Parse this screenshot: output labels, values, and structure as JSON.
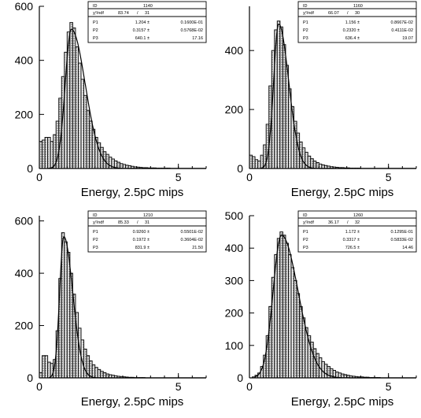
{
  "chart_data": [
    {
      "type": "histogram",
      "xlabel": "Energy, 2.5pC mips",
      "xlim": [
        0,
        6
      ],
      "ylim": [
        0,
        600
      ],
      "xticks": [
        0,
        5
      ],
      "yticks": [
        0,
        200,
        400,
        600
      ],
      "stats": {
        "id_label": "ID",
        "id": "1140",
        "chi2_label": "χ²/ndf",
        "chi2": "83.74",
        "ndf": "31",
        "params": [
          {
            "name": "P1",
            "value": "1.204 ±",
            "error": "0.1600E-01"
          },
          {
            "name": "P2",
            "value": "0.3157 ±",
            "error": "0.5768E-02"
          },
          {
            "name": "P3",
            "value": "640.1 ±",
            "error": "17.16"
          }
        ]
      },
      "bins": [
        {
          "x": 0.0,
          "y": 100
        },
        {
          "x": 0.1,
          "y": 105
        },
        {
          "x": 0.2,
          "y": 115
        },
        {
          "x": 0.3,
          "y": 115
        },
        {
          "x": 0.4,
          "y": 100
        },
        {
          "x": 0.5,
          "y": 125
        },
        {
          "x": 0.6,
          "y": 175
        },
        {
          "x": 0.7,
          "y": 260
        },
        {
          "x": 0.8,
          "y": 340
        },
        {
          "x": 0.9,
          "y": 430
        },
        {
          "x": 1.0,
          "y": 505
        },
        {
          "x": 1.1,
          "y": 540
        },
        {
          "x": 1.2,
          "y": 520
        },
        {
          "x": 1.3,
          "y": 450
        },
        {
          "x": 1.4,
          "y": 390
        },
        {
          "x": 1.5,
          "y": 330
        },
        {
          "x": 1.6,
          "y": 270
        },
        {
          "x": 1.7,
          "y": 215
        },
        {
          "x": 1.8,
          "y": 175
        },
        {
          "x": 1.9,
          "y": 145
        },
        {
          "x": 2.0,
          "y": 115
        },
        {
          "x": 2.1,
          "y": 95
        },
        {
          "x": 2.2,
          "y": 78
        },
        {
          "x": 2.3,
          "y": 62
        },
        {
          "x": 2.4,
          "y": 52
        },
        {
          "x": 2.5,
          "y": 42
        },
        {
          "x": 2.6,
          "y": 35
        },
        {
          "x": 2.7,
          "y": 28
        },
        {
          "x": 2.8,
          "y": 23
        },
        {
          "x": 2.9,
          "y": 18
        },
        {
          "x": 3.0,
          "y": 15
        },
        {
          "x": 3.1,
          "y": 12
        },
        {
          "x": 3.2,
          "y": 10
        },
        {
          "x": 3.3,
          "y": 8
        },
        {
          "x": 3.4,
          "y": 6
        },
        {
          "x": 3.5,
          "y": 5
        },
        {
          "x": 3.6,
          "y": 4
        },
        {
          "x": 3.7,
          "y": 3
        },
        {
          "x": 3.8,
          "y": 3
        },
        {
          "x": 3.9,
          "y": 2
        },
        {
          "x": 4.0,
          "y": 2
        },
        {
          "x": 4.1,
          "y": 2
        },
        {
          "x": 4.2,
          "y": 1
        },
        {
          "x": 4.3,
          "y": 1
        },
        {
          "x": 4.4,
          "y": 1
        },
        {
          "x": 4.5,
          "y": 1
        },
        {
          "x": 4.6,
          "y": 1
        },
        {
          "x": 4.7,
          "y": 0
        },
        {
          "x": 4.8,
          "y": 0
        },
        {
          "x": 4.9,
          "y": 0
        }
      ],
      "fit": {
        "start": 0.3,
        "peak_x": 1.15,
        "peak_y": 515,
        "sigma_left": 0.22,
        "sigma_right": 0.5
      }
    },
    {
      "type": "histogram",
      "xlabel": "Energy, 2.5pC mips",
      "xlim": [
        0,
        6
      ],
      "ylim": [
        0,
        550
      ],
      "xticks": [
        0,
        5
      ],
      "yticks": [
        0,
        200,
        400
      ],
      "stats": {
        "id_label": "ID",
        "id": "1160",
        "chi2_label": "χ²/ndf",
        "chi2": "66.07",
        "ndf": "30",
        "params": [
          {
            "name": "P1",
            "value": "1.156 ±",
            "error": "0.8667E-02"
          },
          {
            "name": "P2",
            "value": "0.2320 ±",
            "error": "0.4111E-02"
          },
          {
            "name": "P3",
            "value": "636.4 ±",
            "error": "19.07"
          }
        ]
      },
      "bins": [
        {
          "x": 0.0,
          "y": 45
        },
        {
          "x": 0.1,
          "y": 40
        },
        {
          "x": 0.2,
          "y": 30
        },
        {
          "x": 0.3,
          "y": 25
        },
        {
          "x": 0.4,
          "y": 45
        },
        {
          "x": 0.5,
          "y": 80
        },
        {
          "x": 0.6,
          "y": 150
        },
        {
          "x": 0.7,
          "y": 280
        },
        {
          "x": 0.8,
          "y": 400
        },
        {
          "x": 0.9,
          "y": 470
        },
        {
          "x": 1.0,
          "y": 500
        },
        {
          "x": 1.1,
          "y": 480
        },
        {
          "x": 1.2,
          "y": 420
        },
        {
          "x": 1.3,
          "y": 350
        },
        {
          "x": 1.4,
          "y": 270
        },
        {
          "x": 1.5,
          "y": 210
        },
        {
          "x": 1.6,
          "y": 160
        },
        {
          "x": 1.7,
          "y": 120
        },
        {
          "x": 1.8,
          "y": 90
        },
        {
          "x": 1.9,
          "y": 70
        },
        {
          "x": 2.0,
          "y": 55
        },
        {
          "x": 2.1,
          "y": 42
        },
        {
          "x": 2.2,
          "y": 33
        },
        {
          "x": 2.3,
          "y": 25
        },
        {
          "x": 2.4,
          "y": 20
        },
        {
          "x": 2.5,
          "y": 15
        },
        {
          "x": 2.6,
          "y": 12
        },
        {
          "x": 2.7,
          "y": 10
        },
        {
          "x": 2.8,
          "y": 8
        },
        {
          "x": 2.9,
          "y": 6
        },
        {
          "x": 3.0,
          "y": 5
        },
        {
          "x": 3.1,
          "y": 4
        },
        {
          "x": 3.2,
          "y": 3
        },
        {
          "x": 3.3,
          "y": 3
        },
        {
          "x": 3.4,
          "y": 2
        },
        {
          "x": 3.5,
          "y": 2
        },
        {
          "x": 3.6,
          "y": 1
        },
        {
          "x": 3.7,
          "y": 1
        },
        {
          "x": 3.8,
          "y": 1
        },
        {
          "x": 3.9,
          "y": 1
        },
        {
          "x": 4.0,
          "y": 0
        },
        {
          "x": 4.1,
          "y": 0
        },
        {
          "x": 4.2,
          "y": 0
        },
        {
          "x": 4.3,
          "y": 0
        },
        {
          "x": 4.4,
          "y": 0
        },
        {
          "x": 4.5,
          "y": 0
        },
        {
          "x": 4.6,
          "y": 0
        },
        {
          "x": 4.7,
          "y": 0
        },
        {
          "x": 4.8,
          "y": 0
        },
        {
          "x": 4.9,
          "y": 0
        }
      ],
      "fit": {
        "start": 0.4,
        "peak_x": 1.05,
        "peak_y": 490,
        "sigma_left": 0.18,
        "sigma_right": 0.36
      }
    },
    {
      "type": "histogram",
      "xlabel": "Energy, 2.5pC mips",
      "xlim": [
        0,
        6
      ],
      "ylim": [
        0,
        620
      ],
      "xticks": [
        0,
        5
      ],
      "yticks": [
        0,
        200,
        400,
        600
      ],
      "stats": {
        "id_label": "ID",
        "id": "1210",
        "chi2_label": "χ²/ndf",
        "chi2": "85.33",
        "ndf": "31",
        "params": [
          {
            "name": "P1",
            "value": "0.9260 ±",
            "error": "0.5501E-02"
          },
          {
            "name": "P2",
            "value": "0.1972 ±",
            "error": "0.3604E-02"
          },
          {
            "name": "P3",
            "value": "831.9 ±",
            "error": "21.50"
          }
        ]
      },
      "bins": [
        {
          "x": 0.0,
          "y": 20
        },
        {
          "x": 0.1,
          "y": 85
        },
        {
          "x": 0.2,
          "y": 85
        },
        {
          "x": 0.3,
          "y": 60
        },
        {
          "x": 0.4,
          "y": 55
        },
        {
          "x": 0.5,
          "y": 70
        },
        {
          "x": 0.6,
          "y": 180
        },
        {
          "x": 0.7,
          "y": 380
        },
        {
          "x": 0.8,
          "y": 555
        },
        {
          "x": 0.9,
          "y": 520
        },
        {
          "x": 1.0,
          "y": 480
        },
        {
          "x": 1.1,
          "y": 400
        },
        {
          "x": 1.2,
          "y": 320
        },
        {
          "x": 1.3,
          "y": 250
        },
        {
          "x": 1.4,
          "y": 190
        },
        {
          "x": 1.5,
          "y": 145
        },
        {
          "x": 1.6,
          "y": 110
        },
        {
          "x": 1.7,
          "y": 85
        },
        {
          "x": 1.8,
          "y": 65
        },
        {
          "x": 1.9,
          "y": 50
        },
        {
          "x": 2.0,
          "y": 40
        },
        {
          "x": 2.1,
          "y": 32
        },
        {
          "x": 2.2,
          "y": 25
        },
        {
          "x": 2.3,
          "y": 20
        },
        {
          "x": 2.4,
          "y": 15
        },
        {
          "x": 2.5,
          "y": 12
        },
        {
          "x": 2.6,
          "y": 10
        },
        {
          "x": 2.7,
          "y": 8
        },
        {
          "x": 2.8,
          "y": 6
        },
        {
          "x": 2.9,
          "y": 5
        },
        {
          "x": 3.0,
          "y": 4
        },
        {
          "x": 3.1,
          "y": 3
        },
        {
          "x": 3.2,
          "y": 2
        },
        {
          "x": 3.3,
          "y": 2
        },
        {
          "x": 3.4,
          "y": 1
        },
        {
          "x": 3.5,
          "y": 1
        },
        {
          "x": 3.6,
          "y": 1
        },
        {
          "x": 3.7,
          "y": 1
        },
        {
          "x": 3.8,
          "y": 0
        },
        {
          "x": 3.9,
          "y": 0
        },
        {
          "x": 4.0,
          "y": 0
        },
        {
          "x": 4.1,
          "y": 0
        },
        {
          "x": 4.2,
          "y": 0
        },
        {
          "x": 4.3,
          "y": 0
        },
        {
          "x": 4.4,
          "y": 0
        },
        {
          "x": 4.5,
          "y": 0
        },
        {
          "x": 4.6,
          "y": 0
        },
        {
          "x": 4.7,
          "y": 0
        },
        {
          "x": 4.8,
          "y": 0
        },
        {
          "x": 4.9,
          "y": 0
        }
      ],
      "fit": {
        "start": 0.35,
        "peak_x": 0.88,
        "peak_y": 540,
        "sigma_left": 0.15,
        "sigma_right": 0.32
      }
    },
    {
      "type": "histogram",
      "xlabel": "Energy, 2.5pC mips",
      "xlim": [
        0,
        6
      ],
      "ylim": [
        0,
        500
      ],
      "xticks": [
        0,
        5
      ],
      "yticks": [
        0,
        100,
        200,
        300,
        400,
        500
      ],
      "stats": {
        "id_label": "ID",
        "id": "1260",
        "chi2_label": "χ²/ndf",
        "chi2": "36.17",
        "ndf": "32",
        "params": [
          {
            "name": "P1",
            "value": "1.172 ±",
            "error": "0.1295E-01"
          },
          {
            "name": "P2",
            "value": "0.3317 ±",
            "error": "0.5833E-02"
          },
          {
            "name": "P3",
            "value": "726.5 ±",
            "error": "14.46"
          }
        ]
      },
      "bins": [
        {
          "x": 0.0,
          "y": 0
        },
        {
          "x": 0.1,
          "y": 3
        },
        {
          "x": 0.2,
          "y": 8
        },
        {
          "x": 0.3,
          "y": 15
        },
        {
          "x": 0.4,
          "y": 35
        },
        {
          "x": 0.5,
          "y": 70
        },
        {
          "x": 0.6,
          "y": 130
        },
        {
          "x": 0.7,
          "y": 220
        },
        {
          "x": 0.8,
          "y": 310
        },
        {
          "x": 0.9,
          "y": 380
        },
        {
          "x": 1.0,
          "y": 430
        },
        {
          "x": 1.1,
          "y": 450
        },
        {
          "x": 1.2,
          "y": 440
        },
        {
          "x": 1.3,
          "y": 415
        },
        {
          "x": 1.4,
          "y": 380
        },
        {
          "x": 1.5,
          "y": 340
        },
        {
          "x": 1.6,
          "y": 300
        },
        {
          "x": 1.7,
          "y": 260
        },
        {
          "x": 1.8,
          "y": 220
        },
        {
          "x": 1.9,
          "y": 185
        },
        {
          "x": 2.0,
          "y": 155
        },
        {
          "x": 2.1,
          "y": 130
        },
        {
          "x": 2.2,
          "y": 110
        },
        {
          "x": 2.3,
          "y": 90
        },
        {
          "x": 2.4,
          "y": 75
        },
        {
          "x": 2.5,
          "y": 62
        },
        {
          "x": 2.6,
          "y": 50
        },
        {
          "x": 2.7,
          "y": 42
        },
        {
          "x": 2.8,
          "y": 35
        },
        {
          "x": 2.9,
          "y": 28
        },
        {
          "x": 3.0,
          "y": 23
        },
        {
          "x": 3.1,
          "y": 18
        },
        {
          "x": 3.2,
          "y": 15
        },
        {
          "x": 3.3,
          "y": 12
        },
        {
          "x": 3.4,
          "y": 10
        },
        {
          "x": 3.5,
          "y": 8
        },
        {
          "x": 3.6,
          "y": 6
        },
        {
          "x": 3.7,
          "y": 5
        },
        {
          "x": 3.8,
          "y": 4
        },
        {
          "x": 3.9,
          "y": 3
        },
        {
          "x": 4.0,
          "y": 3
        },
        {
          "x": 4.1,
          "y": 2
        },
        {
          "x": 4.2,
          "y": 2
        },
        {
          "x": 4.3,
          "y": 1
        },
        {
          "x": 4.4,
          "y": 1
        },
        {
          "x": 4.5,
          "y": 1
        },
        {
          "x": 4.6,
          "y": 1
        },
        {
          "x": 4.7,
          "y": 0
        },
        {
          "x": 4.8,
          "y": 0
        },
        {
          "x": 4.9,
          "y": 0
        }
      ],
      "fit": {
        "start": 0.2,
        "peak_x": 1.15,
        "peak_y": 440,
        "sigma_left": 0.3,
        "sigma_right": 0.6
      }
    }
  ]
}
